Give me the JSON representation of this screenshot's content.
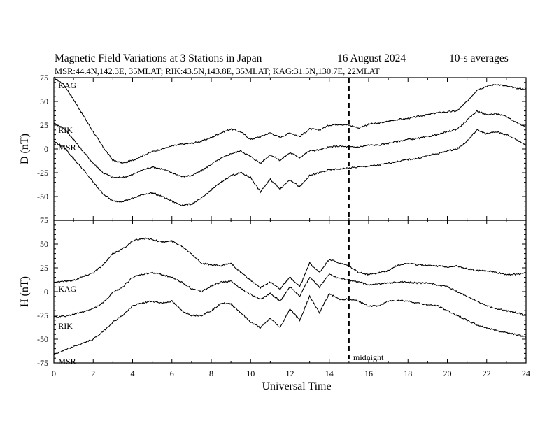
{
  "title": {
    "main": "Magnetic Field Variations at 3 Stations in Japan",
    "date": "16  August  2024",
    "avg": "10-s averages",
    "stations": "MSR:44.4N,142.3E, 35MLAT;  RIK:43.5N,143.8E, 35MLAT;  KAG:31.5N,130.7E, 22MLAT"
  },
  "xlabel": "Universal Time",
  "midnight_label": "midnight",
  "chart_data": [
    {
      "type": "line",
      "ylabel": "D (nT)",
      "ylim": [
        -75,
        75
      ],
      "yticks": [
        -75,
        -50,
        -25,
        0,
        25,
        50,
        75
      ],
      "xlim": [
        0,
        24
      ],
      "xticks": [
        0,
        2,
        4,
        6,
        8,
        10,
        12,
        14,
        16,
        18,
        20,
        22,
        24
      ],
      "midnight_ut": 15,
      "labels": [
        {
          "text": "KAG",
          "x": 0.15,
          "y": 67
        },
        {
          "text": "RIK",
          "x": 0.15,
          "y": 20
        },
        {
          "text": "MSR",
          "x": 0.15,
          "y": 2
        }
      ],
      "series": [
        {
          "name": "KAG",
          "x": [
            0,
            0.5,
            1,
            1.5,
            2,
            2.5,
            3,
            3.5,
            4,
            4.5,
            5,
            5.5,
            6,
            6.5,
            7,
            7.5,
            8,
            8.5,
            9,
            9.5,
            10,
            10.5,
            11,
            11.5,
            12,
            12.5,
            13,
            13.5,
            14,
            14.5,
            15,
            15.5,
            16,
            16.5,
            17,
            17.5,
            18,
            18.5,
            19,
            19.5,
            20,
            20.5,
            21,
            21.5,
            22,
            22.5,
            23,
            23.5,
            24
          ],
          "y": [
            75,
            68,
            52,
            35,
            18,
            2,
            -12,
            -15,
            -12,
            -7,
            -3,
            0,
            3,
            5,
            6,
            8,
            12,
            17,
            21,
            18,
            10,
            13,
            17,
            12,
            17,
            13,
            21,
            20,
            25,
            26,
            25,
            22,
            26,
            27,
            29,
            31,
            32,
            34,
            36,
            38,
            39,
            40,
            50,
            62,
            66,
            68,
            66,
            64,
            63
          ]
        },
        {
          "name": "RIK",
          "x": [
            0,
            0.5,
            1,
            1.5,
            2,
            2.5,
            3,
            3.5,
            4,
            4.5,
            5,
            5.5,
            6,
            6.5,
            7,
            7.5,
            8,
            8.5,
            9,
            9.5,
            10,
            10.5,
            11,
            11.5,
            12,
            12.5,
            13,
            13.5,
            14,
            14.5,
            15,
            15.5,
            16,
            16.5,
            17,
            17.5,
            18,
            18.5,
            19,
            19.5,
            20,
            20.5,
            21,
            21.5,
            22,
            22.5,
            23,
            23.5,
            24
          ],
          "y": [
            27,
            22,
            10,
            -3,
            -15,
            -25,
            -30,
            -30,
            -27,
            -22,
            -19,
            -21,
            -25,
            -29,
            -28,
            -23,
            -16,
            -10,
            -5,
            -2,
            -8,
            -15,
            -6,
            -12,
            -4,
            -9,
            -2,
            -1,
            2,
            3,
            2,
            2,
            4,
            4,
            6,
            8,
            10,
            11,
            13,
            15,
            18,
            21,
            30,
            40,
            36,
            37,
            34,
            28,
            23
          ]
        },
        {
          "name": "MSR",
          "x": [
            0,
            0.5,
            1,
            1.5,
            2,
            2.5,
            3,
            3.5,
            4,
            4.5,
            5,
            5.5,
            6,
            6.5,
            7,
            7.5,
            8,
            8.5,
            9,
            9.5,
            10,
            10.5,
            11,
            11.5,
            12,
            12.5,
            13,
            13.5,
            14,
            14.5,
            15,
            15.5,
            16,
            16.5,
            17,
            17.5,
            18,
            18.5,
            19,
            19.5,
            20,
            20.5,
            21,
            21.5,
            22,
            22.5,
            23,
            23.5,
            24
          ],
          "y": [
            8,
            2,
            -10,
            -22,
            -35,
            -47,
            -55,
            -55,
            -52,
            -48,
            -46,
            -50,
            -55,
            -59,
            -58,
            -52,
            -43,
            -35,
            -28,
            -25,
            -30,
            -45,
            -32,
            -42,
            -32,
            -40,
            -28,
            -25,
            -22,
            -21,
            -20,
            -19,
            -18,
            -17,
            -15,
            -13,
            -11,
            -10,
            -7,
            -5,
            -2,
            0,
            8,
            20,
            16,
            18,
            15,
            10,
            4
          ]
        }
      ]
    },
    {
      "type": "line",
      "ylabel": "H (nT)",
      "ylim": [
        -75,
        75
      ],
      "yticks": [
        -75,
        -50,
        -25,
        0,
        25,
        50,
        75
      ],
      "xlim": [
        0,
        24
      ],
      "xticks": [
        0,
        2,
        4,
        6,
        8,
        10,
        12,
        14,
        16,
        18,
        20,
        22,
        24
      ],
      "midnight_ut": 15,
      "labels": [
        {
          "text": "KAG",
          "x": 0.15,
          "y": 3
        },
        {
          "text": "RIK",
          "x": 0.15,
          "y": -36
        },
        {
          "text": "MSR",
          "x": 0.15,
          "y": -73
        }
      ],
      "series": [
        {
          "name": "KAG",
          "x": [
            0,
            0.5,
            1,
            1.5,
            2,
            2.5,
            3,
            3.5,
            4,
            4.5,
            5,
            5.5,
            6,
            6.5,
            7,
            7.5,
            8,
            8.5,
            9,
            9.5,
            10,
            10.5,
            11,
            11.5,
            12,
            12.5,
            13,
            13.5,
            14,
            14.5,
            15,
            15.5,
            16,
            16.5,
            17,
            17.5,
            18,
            18.5,
            19,
            19.5,
            20,
            20.5,
            21,
            21.5,
            22,
            22.5,
            23,
            23.5,
            24
          ],
          "y": [
            10,
            11,
            12,
            16,
            20,
            28,
            40,
            45,
            53,
            56,
            55,
            52,
            53,
            48,
            40,
            30,
            28,
            27,
            30,
            20,
            12,
            4,
            10,
            3,
            15,
            5,
            30,
            20,
            34,
            30,
            27,
            20,
            18,
            20,
            22,
            28,
            30,
            28,
            28,
            27,
            26,
            27,
            24,
            22,
            22,
            20,
            18,
            18,
            20
          ]
        },
        {
          "name": "RIK",
          "x": [
            0,
            0.5,
            1,
            1.5,
            2,
            2.5,
            3,
            3.5,
            4,
            4.5,
            5,
            5.5,
            6,
            6.5,
            7,
            7.5,
            8,
            8.5,
            9,
            9.5,
            10,
            10.5,
            11,
            11.5,
            12,
            12.5,
            13,
            13.5,
            14,
            14.5,
            15,
            15.5,
            16,
            16.5,
            17,
            17.5,
            18,
            18.5,
            19,
            19.5,
            20,
            20.5,
            21,
            21.5,
            22,
            22.5,
            23,
            23.5,
            24
          ],
          "y": [
            -27,
            -26,
            -24,
            -21,
            -18,
            -12,
            -1,
            5,
            15,
            18,
            20,
            18,
            15,
            10,
            3,
            0,
            6,
            10,
            11,
            3,
            -3,
            -8,
            -2,
            -10,
            5,
            -5,
            15,
            5,
            18,
            14,
            12,
            10,
            7,
            8,
            9,
            10,
            10,
            9,
            9,
            7,
            5,
            0,
            -5,
            -10,
            -15,
            -18,
            -20,
            -22,
            -25
          ]
        },
        {
          "name": "MSR",
          "x": [
            0,
            0.5,
            1,
            1.5,
            2,
            2.5,
            3,
            3.5,
            4,
            4.5,
            5,
            5.5,
            6,
            6.5,
            7,
            7.5,
            8,
            8.5,
            9,
            9.5,
            10,
            10.5,
            11,
            11.5,
            12,
            12.5,
            13,
            13.5,
            14,
            14.5,
            15,
            15.5,
            16,
            16.5,
            17,
            17.5,
            18,
            18.5,
            19,
            19.5,
            20,
            20.5,
            21,
            21.5,
            22,
            22.5,
            23,
            23.5,
            24
          ],
          "y": [
            -66,
            -62,
            -58,
            -54,
            -50,
            -42,
            -32,
            -25,
            -15,
            -12,
            -10,
            -12,
            -10,
            -20,
            -25,
            -25,
            -20,
            -12,
            -13,
            -22,
            -32,
            -38,
            -28,
            -38,
            -18,
            -30,
            -5,
            -22,
            -2,
            -8,
            -8,
            -10,
            -15,
            -15,
            -10,
            -9,
            -10,
            -12,
            -14,
            -15,
            -20,
            -25,
            -30,
            -35,
            -38,
            -41,
            -43,
            -45,
            -48
          ]
        }
      ]
    }
  ]
}
